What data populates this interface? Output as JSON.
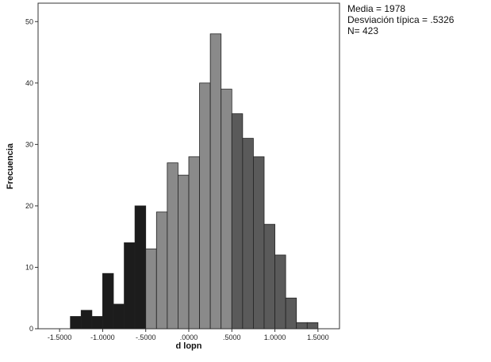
{
  "chart_data": {
    "type": "bar",
    "title": "",
    "xlabel": "d lopn",
    "ylabel": "Frecuencia",
    "xlim": [
      -1.75,
      1.75
    ],
    "ylim": [
      0,
      53
    ],
    "grid": false,
    "bin_width": 0.125,
    "x_tick_values": [
      -1.5,
      -1.0,
      -0.5,
      0.0,
      0.5,
      1.0,
      1.5
    ],
    "x_tick_labels": [
      "-1.5000",
      "-1.0000",
      "-.5000",
      ".0000",
      ".5000",
      "1.0000",
      "1.5000"
    ],
    "y_ticks": [
      0,
      10,
      20,
      30,
      40,
      50
    ],
    "bins": [
      {
        "x0": -1.375,
        "value": 2,
        "color": "#1c1c1c"
      },
      {
        "x0": -1.25,
        "value": 3,
        "color": "#1c1c1c"
      },
      {
        "x0": -1.125,
        "value": 2,
        "color": "#1c1c1c"
      },
      {
        "x0": -1.0,
        "value": 9,
        "color": "#1c1c1c"
      },
      {
        "x0": -0.875,
        "value": 4,
        "color": "#1c1c1c"
      },
      {
        "x0": -0.75,
        "value": 14,
        "color": "#1c1c1c"
      },
      {
        "x0": -0.625,
        "value": 20,
        "color": "#1c1c1c"
      },
      {
        "x0": -0.5,
        "value": 13,
        "color": "#8a8a8a"
      },
      {
        "x0": -0.375,
        "value": 19,
        "color": "#8a8a8a"
      },
      {
        "x0": -0.25,
        "value": 27,
        "color": "#8a8a8a"
      },
      {
        "x0": -0.125,
        "value": 25,
        "color": "#8a8a8a"
      },
      {
        "x0": 0.0,
        "value": 28,
        "color": "#8a8a8a"
      },
      {
        "x0": 0.125,
        "value": 40,
        "color": "#8a8a8a"
      },
      {
        "x0": 0.25,
        "value": 48,
        "color": "#8a8a8a"
      },
      {
        "x0": 0.375,
        "value": 39,
        "color": "#8a8a8a"
      },
      {
        "x0": 0.5,
        "value": 35,
        "color": "#5a5a5a"
      },
      {
        "x0": 0.625,
        "value": 31,
        "color": "#5a5a5a"
      },
      {
        "x0": 0.75,
        "value": 28,
        "color": "#5a5a5a"
      },
      {
        "x0": 0.875,
        "value": 17,
        "color": "#5a5a5a"
      },
      {
        "x0": 1.0,
        "value": 12,
        "color": "#5a5a5a"
      },
      {
        "x0": 1.125,
        "value": 5,
        "color": "#5a5a5a"
      },
      {
        "x0": 1.25,
        "value": 1,
        "color": "#5a5a5a"
      },
      {
        "x0": 1.375,
        "value": 1,
        "color": "#5a5a5a"
      }
    ],
    "annotations": {
      "mean": "Media = 1978",
      "std": "Desviación típica = .5326",
      "n": "N= 423"
    }
  }
}
